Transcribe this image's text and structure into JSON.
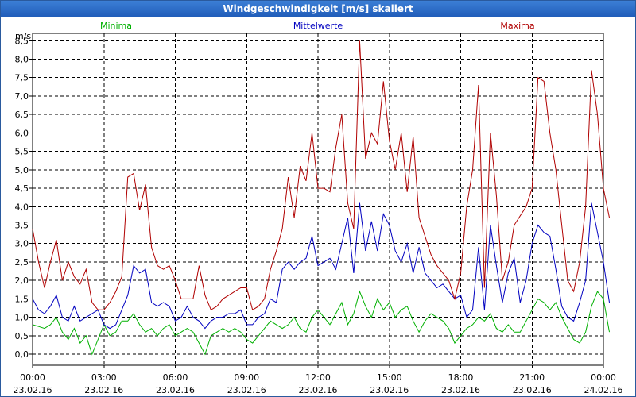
{
  "window": {
    "title": "Windgeschwindigkeit [m/s] skaliert"
  },
  "chart_data": {
    "type": "line",
    "title": "Windgeschwindigkeit [m/s] skaliert",
    "ylabel": "m/s",
    "ylim": [
      -0.3,
      8.7
    ],
    "yticks": [
      "0,0",
      "0,5",
      "1,0",
      "1,5",
      "2,0",
      "2,5",
      "3,0",
      "3,5",
      "4,0",
      "4,5",
      "5,0",
      "5,5",
      "6,0",
      "6,5",
      "7,0",
      "7,5",
      "8,0",
      "8,5"
    ],
    "xlim": [
      "23.02.16 00:00",
      "24.02.16 00:00"
    ],
    "xticks": [
      {
        "time": "00:00",
        "date": "23.02.16"
      },
      {
        "time": "03:00",
        "date": "23.02.16"
      },
      {
        "time": "06:00",
        "date": "23.02.16"
      },
      {
        "time": "09:00",
        "date": "23.02.16"
      },
      {
        "time": "12:00",
        "date": "23.02.16"
      },
      {
        "time": "15:00",
        "date": "23.02.16"
      },
      {
        "time": "18:00",
        "date": "23.02.16"
      },
      {
        "time": "21:00",
        "date": "23.02.16"
      },
      {
        "time": "00:00",
        "date": "24.02.16"
      }
    ],
    "grid": true,
    "legend_position": "top",
    "series": [
      {
        "name": "Minima",
        "color": "#00b000",
        "points": [
          [
            0,
            0.8
          ],
          [
            0.25,
            0.75
          ],
          [
            0.5,
            0.7
          ],
          [
            0.75,
            0.8
          ],
          [
            1,
            1.0
          ],
          [
            1.25,
            0.6
          ],
          [
            1.5,
            0.4
          ],
          [
            1.75,
            0.7
          ],
          [
            2,
            0.3
          ],
          [
            2.25,
            0.5
          ],
          [
            2.5,
            0.0
          ],
          [
            2.75,
            0.4
          ],
          [
            3,
            0.8
          ],
          [
            3.25,
            0.5
          ],
          [
            3.5,
            0.6
          ],
          [
            3.75,
            0.9
          ],
          [
            4,
            0.9
          ],
          [
            4.25,
            1.1
          ],
          [
            4.5,
            0.8
          ],
          [
            4.75,
            0.6
          ],
          [
            5,
            0.7
          ],
          [
            5.25,
            0.5
          ],
          [
            5.5,
            0.7
          ],
          [
            5.75,
            0.8
          ],
          [
            6,
            0.5
          ],
          [
            6.25,
            0.6
          ],
          [
            6.5,
            0.7
          ],
          [
            6.75,
            0.6
          ],
          [
            7,
            0.3
          ],
          [
            7.25,
            0.0
          ],
          [
            7.5,
            0.5
          ],
          [
            7.75,
            0.6
          ],
          [
            8,
            0.7
          ],
          [
            8.25,
            0.6
          ],
          [
            8.5,
            0.7
          ],
          [
            8.75,
            0.6
          ],
          [
            9,
            0.4
          ],
          [
            9.25,
            0.3
          ],
          [
            9.5,
            0.5
          ],
          [
            9.75,
            0.7
          ],
          [
            10,
            0.9
          ],
          [
            10.25,
            0.8
          ],
          [
            10.5,
            0.7
          ],
          [
            10.75,
            0.8
          ],
          [
            11,
            1.0
          ],
          [
            11.25,
            0.7
          ],
          [
            11.5,
            0.6
          ],
          [
            11.75,
            1.0
          ],
          [
            12,
            1.2
          ],
          [
            12.25,
            1.0
          ],
          [
            12.5,
            0.8
          ],
          [
            12.75,
            1.1
          ],
          [
            13,
            1.4
          ],
          [
            13.25,
            0.8
          ],
          [
            13.5,
            1.1
          ],
          [
            13.75,
            1.7
          ],
          [
            14,
            1.3
          ],
          [
            14.25,
            1.0
          ],
          [
            14.5,
            1.5
          ],
          [
            14.75,
            1.2
          ],
          [
            15,
            1.4
          ],
          [
            15.25,
            1.0
          ],
          [
            15.5,
            1.2
          ],
          [
            15.75,
            1.3
          ],
          [
            16,
            0.9
          ],
          [
            16.25,
            0.6
          ],
          [
            16.5,
            0.9
          ],
          [
            16.75,
            1.1
          ],
          [
            17,
            1.0
          ],
          [
            17.25,
            0.9
          ],
          [
            17.5,
            0.7
          ],
          [
            17.75,
            0.3
          ],
          [
            18,
            0.5
          ],
          [
            18.25,
            0.7
          ],
          [
            18.5,
            0.8
          ],
          [
            18.75,
            1.0
          ],
          [
            19,
            0.9
          ],
          [
            19.25,
            1.1
          ],
          [
            19.5,
            0.7
          ],
          [
            19.75,
            0.6
          ],
          [
            20,
            0.8
          ],
          [
            20.25,
            0.6
          ],
          [
            20.5,
            0.6
          ],
          [
            20.75,
            0.9
          ],
          [
            21,
            1.2
          ],
          [
            21.25,
            1.5
          ],
          [
            21.5,
            1.4
          ],
          [
            21.75,
            1.2
          ],
          [
            22,
            1.4
          ],
          [
            22.25,
            1.0
          ],
          [
            22.5,
            0.7
          ],
          [
            22.75,
            0.4
          ],
          [
            23,
            0.3
          ],
          [
            23.25,
            0.6
          ],
          [
            23.5,
            1.3
          ],
          [
            23.75,
            1.7
          ],
          [
            24,
            1.5
          ],
          [
            24.25,
            0.6
          ]
        ]
      },
      {
        "name": "Mittelwerte",
        "color": "#0000c0",
        "points": [
          [
            0,
            1.5
          ],
          [
            0.25,
            1.2
          ],
          [
            0.5,
            1.1
          ],
          [
            0.75,
            1.3
          ],
          [
            1,
            1.6
          ],
          [
            1.25,
            1.0
          ],
          [
            1.5,
            0.9
          ],
          [
            1.75,
            1.3
          ],
          [
            2,
            0.9
          ],
          [
            2.25,
            1.0
          ],
          [
            2.5,
            1.1
          ],
          [
            2.75,
            1.2
          ],
          [
            3,
            0.8
          ],
          [
            3.25,
            0.7
          ],
          [
            3.5,
            0.8
          ],
          [
            3.75,
            1.2
          ],
          [
            4,
            1.6
          ],
          [
            4.25,
            2.4
          ],
          [
            4.5,
            2.2
          ],
          [
            4.75,
            2.3
          ],
          [
            5,
            1.4
          ],
          [
            5.25,
            1.3
          ],
          [
            5.5,
            1.4
          ],
          [
            5.75,
            1.3
          ],
          [
            6,
            0.9
          ],
          [
            6.25,
            1.0
          ],
          [
            6.5,
            1.3
          ],
          [
            6.75,
            1.0
          ],
          [
            7,
            0.9
          ],
          [
            7.25,
            0.7
          ],
          [
            7.5,
            0.9
          ],
          [
            7.75,
            1.0
          ],
          [
            8,
            1.0
          ],
          [
            8.25,
            1.1
          ],
          [
            8.5,
            1.1
          ],
          [
            8.75,
            1.2
          ],
          [
            9,
            0.8
          ],
          [
            9.25,
            0.8
          ],
          [
            9.5,
            1.0
          ],
          [
            9.75,
            1.1
          ],
          [
            10,
            1.5
          ],
          [
            10.25,
            1.4
          ],
          [
            10.5,
            2.3
          ],
          [
            10.75,
            2.5
          ],
          [
            11,
            2.3
          ],
          [
            11.25,
            2.5
          ],
          [
            11.5,
            2.6
          ],
          [
            11.75,
            3.2
          ],
          [
            12,
            2.4
          ],
          [
            12.25,
            2.5
          ],
          [
            12.5,
            2.6
          ],
          [
            12.75,
            2.3
          ],
          [
            13,
            3.0
          ],
          [
            13.25,
            3.7
          ],
          [
            13.5,
            2.2
          ],
          [
            13.75,
            4.1
          ],
          [
            14,
            2.8
          ],
          [
            14.25,
            3.6
          ],
          [
            14.5,
            2.8
          ],
          [
            14.75,
            3.8
          ],
          [
            15,
            3.5
          ],
          [
            15.25,
            2.8
          ],
          [
            15.5,
            2.5
          ],
          [
            15.75,
            3.0
          ],
          [
            16,
            2.2
          ],
          [
            16.25,
            2.9
          ],
          [
            16.5,
            2.2
          ],
          [
            16.75,
            2.0
          ],
          [
            17,
            1.8
          ],
          [
            17.25,
            1.9
          ],
          [
            17.5,
            1.7
          ],
          [
            17.75,
            1.5
          ],
          [
            18,
            1.6
          ],
          [
            18.25,
            1.0
          ],
          [
            18.5,
            1.2
          ],
          [
            18.75,
            2.9
          ],
          [
            19,
            1.2
          ],
          [
            19.25,
            3.5
          ],
          [
            19.5,
            2.4
          ],
          [
            19.75,
            1.4
          ],
          [
            20,
            2.2
          ],
          [
            20.25,
            2.6
          ],
          [
            20.5,
            1.4
          ],
          [
            20.75,
            2.0
          ],
          [
            21,
            3.0
          ],
          [
            21.25,
            3.5
          ],
          [
            21.5,
            3.3
          ],
          [
            21.75,
            3.2
          ],
          [
            22,
            2.3
          ],
          [
            22.25,
            1.3
          ],
          [
            22.5,
            1.0
          ],
          [
            22.75,
            0.9
          ],
          [
            23,
            1.4
          ],
          [
            23.25,
            2.0
          ],
          [
            23.5,
            4.1
          ],
          [
            23.75,
            3.3
          ],
          [
            24,
            2.5
          ],
          [
            24.25,
            1.4
          ]
        ]
      },
      {
        "name": "Maxima",
        "color": "#b00000",
        "points": [
          [
            0,
            3.4
          ],
          [
            0.25,
            2.5
          ],
          [
            0.5,
            1.8
          ],
          [
            0.75,
            2.5
          ],
          [
            1,
            3.1
          ],
          [
            1.25,
            2.0
          ],
          [
            1.5,
            2.5
          ],
          [
            1.75,
            2.1
          ],
          [
            2,
            1.9
          ],
          [
            2.25,
            2.3
          ],
          [
            2.5,
            1.4
          ],
          [
            2.75,
            1.2
          ],
          [
            3,
            1.2
          ],
          [
            3.25,
            1.4
          ],
          [
            3.5,
            1.7
          ],
          [
            3.75,
            2.1
          ],
          [
            4,
            4.8
          ],
          [
            4.25,
            4.9
          ],
          [
            4.5,
            3.9
          ],
          [
            4.75,
            4.6
          ],
          [
            5,
            2.9
          ],
          [
            5.25,
            2.4
          ],
          [
            5.5,
            2.3
          ],
          [
            5.75,
            2.4
          ],
          [
            6,
            2.0
          ],
          [
            6.25,
            1.5
          ],
          [
            6.5,
            1.5
          ],
          [
            6.75,
            1.5
          ],
          [
            7,
            2.4
          ],
          [
            7.25,
            1.6
          ],
          [
            7.5,
            1.2
          ],
          [
            7.75,
            1.3
          ],
          [
            8,
            1.5
          ],
          [
            8.25,
            1.6
          ],
          [
            8.5,
            1.7
          ],
          [
            8.75,
            1.8
          ],
          [
            9,
            1.8
          ],
          [
            9.25,
            1.2
          ],
          [
            9.5,
            1.3
          ],
          [
            9.75,
            1.5
          ],
          [
            10,
            2.3
          ],
          [
            10.25,
            2.8
          ],
          [
            10.5,
            3.4
          ],
          [
            10.75,
            4.8
          ],
          [
            11,
            3.7
          ],
          [
            11.25,
            5.1
          ],
          [
            11.5,
            4.7
          ],
          [
            11.75,
            6.0
          ],
          [
            12,
            4.5
          ],
          [
            12.25,
            4.5
          ],
          [
            12.5,
            4.4
          ],
          [
            12.75,
            5.6
          ],
          [
            13,
            6.5
          ],
          [
            13.25,
            4.1
          ],
          [
            13.5,
            3.4
          ],
          [
            13.75,
            8.5
          ],
          [
            14,
            5.3
          ],
          [
            14.25,
            6.0
          ],
          [
            14.5,
            5.7
          ],
          [
            14.75,
            7.4
          ],
          [
            15,
            5.8
          ],
          [
            15.25,
            5.0
          ],
          [
            15.5,
            6.0
          ],
          [
            15.75,
            4.4
          ],
          [
            16,
            5.9
          ],
          [
            16.25,
            3.7
          ],
          [
            16.5,
            3.2
          ],
          [
            16.75,
            2.7
          ],
          [
            17,
            2.4
          ],
          [
            17.25,
            2.2
          ],
          [
            17.5,
            2.0
          ],
          [
            17.75,
            1.5
          ],
          [
            18,
            2.2
          ],
          [
            18.25,
            4.0
          ],
          [
            18.5,
            5.0
          ],
          [
            18.75,
            7.3
          ],
          [
            19,
            1.8
          ],
          [
            19.25,
            6.0
          ],
          [
            19.5,
            4.3
          ],
          [
            19.75,
            2.0
          ],
          [
            20,
            2.5
          ],
          [
            20.25,
            3.5
          ],
          [
            20.75,
            4.0
          ],
          [
            21,
            4.5
          ],
          [
            21.25,
            7.5
          ],
          [
            21.5,
            7.4
          ],
          [
            21.75,
            6.0
          ],
          [
            22,
            5.0
          ],
          [
            22.25,
            3.5
          ],
          [
            22.5,
            2.0
          ],
          [
            22.75,
            1.7
          ],
          [
            23,
            2.5
          ],
          [
            23.25,
            4.0
          ],
          [
            23.5,
            7.7
          ],
          [
            23.75,
            6.5
          ],
          [
            24,
            4.5
          ],
          [
            24.25,
            3.7
          ]
        ]
      }
    ]
  }
}
